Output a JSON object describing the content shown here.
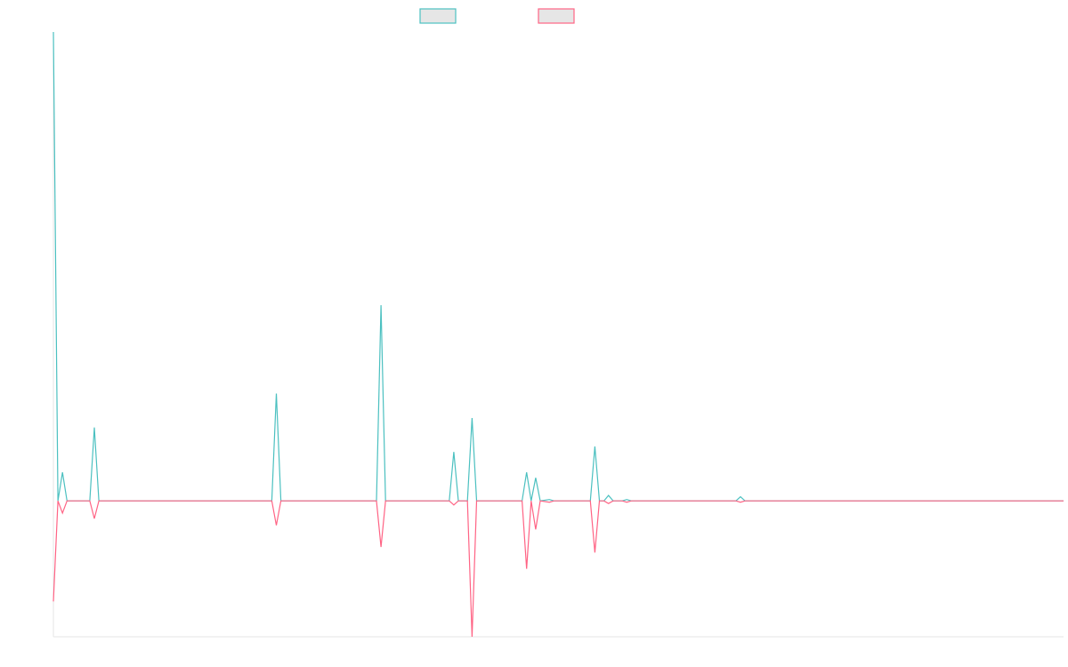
{
  "chart_data": {
    "type": "line",
    "title": "",
    "xlabel": "",
    "ylabel": "",
    "grid": false,
    "legend": "top-center",
    "ylim": [
      -100,
      345
    ],
    "series": [
      {
        "color": "#4bc0c0",
        "fill": "#e6e6e6",
        "points": [
          [
            0,
            345
          ],
          [
            1,
            0
          ],
          [
            2,
            21
          ],
          [
            3,
            0
          ],
          [
            8,
            0
          ],
          [
            9,
            54
          ],
          [
            10,
            0
          ],
          [
            48,
            0
          ],
          [
            49,
            79
          ],
          [
            50,
            0
          ],
          [
            71,
            0
          ],
          [
            72,
            144
          ],
          [
            73,
            0
          ],
          [
            87,
            0
          ],
          [
            88,
            36
          ],
          [
            89,
            0
          ],
          [
            91,
            0
          ],
          [
            92,
            61
          ],
          [
            93,
            0
          ],
          [
            103,
            0
          ],
          [
            104,
            21
          ],
          [
            105,
            0
          ],
          [
            106,
            17
          ],
          [
            107,
            0
          ],
          [
            109,
            1
          ],
          [
            110,
            0
          ],
          [
            118,
            0
          ],
          [
            119,
            40
          ],
          [
            120,
            0
          ],
          [
            121,
            0
          ],
          [
            122,
            4
          ],
          [
            123,
            0
          ],
          [
            125,
            0
          ],
          [
            126,
            1
          ],
          [
            127,
            0
          ],
          [
            150,
            0
          ],
          [
            151,
            3
          ],
          [
            152,
            0
          ],
          [
            222,
            0
          ]
        ]
      },
      {
        "color": "#ff6384",
        "fill": "#e6e6e6",
        "points": [
          [
            0,
            -74
          ],
          [
            1,
            0
          ],
          [
            2,
            -9
          ],
          [
            3,
            0
          ],
          [
            8,
            0
          ],
          [
            9,
            -13
          ],
          [
            10,
            0
          ],
          [
            48,
            0
          ],
          [
            49,
            -18
          ],
          [
            50,
            0
          ],
          [
            71,
            0
          ],
          [
            72,
            -34
          ],
          [
            73,
            0
          ],
          [
            87,
            0
          ],
          [
            88,
            -3
          ],
          [
            89,
            0
          ],
          [
            91,
            0
          ],
          [
            92,
            -100
          ],
          [
            93,
            0
          ],
          [
            103,
            0
          ],
          [
            104,
            -50
          ],
          [
            105,
            0
          ],
          [
            106,
            -21
          ],
          [
            107,
            0
          ],
          [
            109,
            -1
          ],
          [
            110,
            0
          ],
          [
            118,
            0
          ],
          [
            119,
            -38
          ],
          [
            120,
            0
          ],
          [
            121,
            0
          ],
          [
            122,
            -2
          ],
          [
            123,
            0
          ],
          [
            125,
            0
          ],
          [
            126,
            -1
          ],
          [
            127,
            0
          ],
          [
            150,
            0
          ],
          [
            151,
            -1
          ],
          [
            152,
            0
          ],
          [
            222,
            0
          ]
        ]
      }
    ],
    "xlim": [
      0,
      222
    ]
  }
}
